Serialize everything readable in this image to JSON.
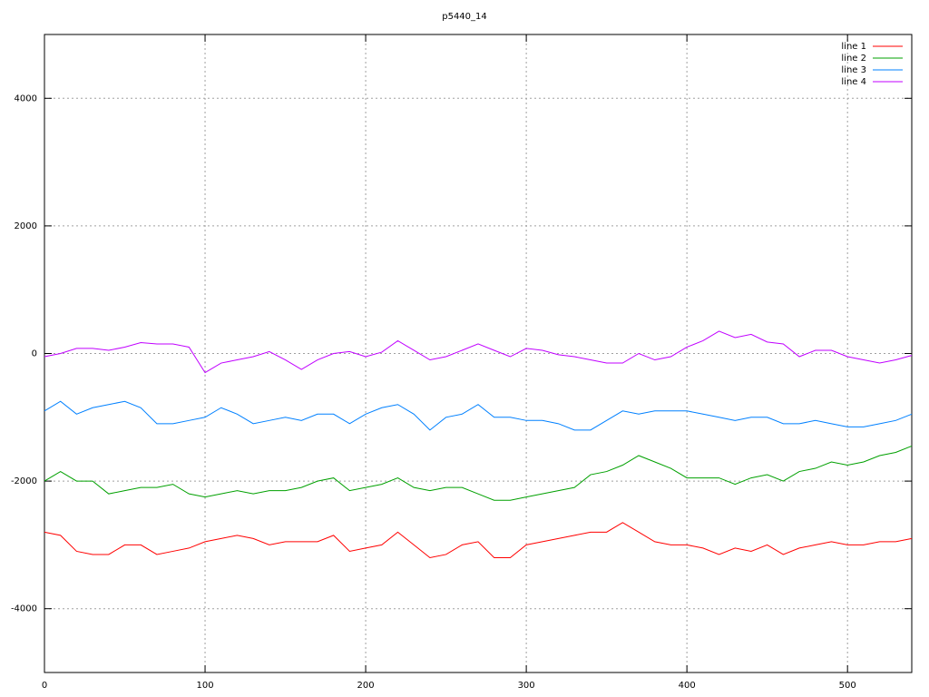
{
  "chart_data": {
    "type": "line",
    "title": "p5440_14",
    "x": [
      0,
      10,
      20,
      30,
      40,
      50,
      60,
      70,
      80,
      90,
      100,
      110,
      120,
      130,
      140,
      150,
      160,
      170,
      180,
      190,
      200,
      210,
      220,
      230,
      240,
      250,
      260,
      270,
      280,
      290,
      300,
      310,
      320,
      330,
      340,
      350,
      360,
      370,
      380,
      390,
      400,
      410,
      420,
      430,
      440,
      450,
      460,
      470,
      480,
      490,
      500,
      510,
      520,
      530,
      540
    ],
    "series": [
      {
        "name": "line 1",
        "color": "#ff0000",
        "values": [
          -2800,
          -2850,
          -3100,
          -3150,
          -3150,
          -3000,
          -3000,
          -3150,
          -3100,
          -3050,
          -2950,
          -2900,
          -2850,
          -2900,
          -3000,
          -2950,
          -2950,
          -2950,
          -2850,
          -3100,
          -3050,
          -3000,
          -2800,
          -3000,
          -3200,
          -3150,
          -3000,
          -2950,
          -3200,
          -3200,
          -3000,
          -2950,
          -2900,
          -2850,
          -2800,
          -2800,
          -2650,
          -2800,
          -2950,
          -3000,
          -3000,
          -3050,
          -3150,
          -3050,
          -3100,
          -3000,
          -3150,
          -3050,
          -3000,
          -2950,
          -3000,
          -3000,
          -2950,
          -2950,
          -2900
        ]
      },
      {
        "name": "line 2",
        "color": "#00a000",
        "values": [
          -2000,
          -1850,
          -2000,
          -2000,
          -2200,
          -2150,
          -2100,
          -2100,
          -2050,
          -2200,
          -2250,
          -2200,
          -2150,
          -2200,
          -2150,
          -2150,
          -2100,
          -2000,
          -1950,
          -2150,
          -2100,
          -2050,
          -1950,
          -2100,
          -2150,
          -2100,
          -2100,
          -2200,
          -2300,
          -2300,
          -2250,
          -2200,
          -2150,
          -2100,
          -1900,
          -1850,
          -1750,
          -1600,
          -1700,
          -1800,
          -1950,
          -1950,
          -1950,
          -2050,
          -1950,
          -1900,
          -2000,
          -1850,
          -1800,
          -1700,
          -1750,
          -1700,
          -1600,
          -1550,
          -1450
        ]
      },
      {
        "name": "line 3",
        "color": "#0080ff",
        "values": [
          -900,
          -750,
          -950,
          -850,
          -800,
          -750,
          -850,
          -1100,
          -1100,
          -1050,
          -1000,
          -850,
          -950,
          -1100,
          -1050,
          -1000,
          -1050,
          -950,
          -950,
          -1100,
          -950,
          -850,
          -800,
          -950,
          -1200,
          -1000,
          -950,
          -800,
          -1000,
          -1000,
          -1050,
          -1050,
          -1100,
          -1200,
          -1200,
          -1050,
          -900,
          -950,
          -900,
          -900,
          -900,
          -950,
          -1000,
          -1050,
          -1000,
          -1000,
          -1100,
          -1100,
          -1050,
          -1100,
          -1150,
          -1150,
          -1100,
          -1050,
          -950
        ]
      },
      {
        "name": "line 4",
        "color": "#c000ff",
        "values": [
          -50,
          0,
          80,
          80,
          50,
          100,
          170,
          150,
          150,
          100,
          -300,
          -150,
          -100,
          -50,
          30,
          -100,
          -250,
          -100,
          0,
          30,
          -50,
          20,
          200,
          50,
          -100,
          -50,
          50,
          150,
          50,
          -50,
          80,
          50,
          -20,
          -50,
          -100,
          -150,
          -150,
          0,
          -100,
          -50,
          100,
          200,
          350,
          250,
          300,
          180,
          150,
          -50,
          50,
          50,
          -50,
          -100,
          -150,
          -100,
          -30
        ]
      }
    ],
    "xlim": [
      0,
      540
    ],
    "ylim": [
      -5000,
      5000
    ],
    "xticks": [
      0,
      100,
      200,
      300,
      400,
      500
    ],
    "yticks": [
      -4000,
      -2000,
      0,
      2000,
      4000
    ],
    "grid": true,
    "legend": "top-right"
  }
}
